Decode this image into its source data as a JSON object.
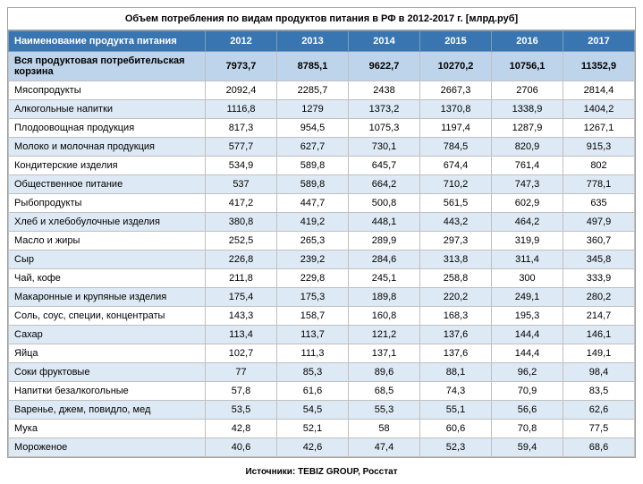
{
  "title": "Объем потребления по видам продуктов питания в РФ в 2012-2017 г. [млрд.руб]",
  "header": {
    "name": "Наименование продукта питания",
    "years": [
      "2012",
      "2013",
      "2014",
      "2015",
      "2016",
      "2017"
    ]
  },
  "totalRow": {
    "name": "Вся продуктовая потребительская корзина",
    "values": [
      "7973,7",
      "8785,1",
      "9622,7",
      "10270,2",
      "10756,1",
      "11352,9"
    ]
  },
  "rows": [
    {
      "name": "Мясопродукты",
      "values": [
        "2092,4",
        "2285,7",
        "2438",
        "2667,3",
        "2706",
        "2814,4"
      ]
    },
    {
      "name": "Алкогольные напитки",
      "values": [
        "1116,8",
        "1279",
        "1373,2",
        "1370,8",
        "1338,9",
        "1404,2"
      ]
    },
    {
      "name": "Плодоовощная продукция",
      "values": [
        "817,3",
        "954,5",
        "1075,3",
        "1197,4",
        "1287,9",
        "1267,1"
      ]
    },
    {
      "name": "Молоко и молочная продукция",
      "values": [
        "577,7",
        "627,7",
        "730,1",
        "784,5",
        "820,9",
        "915,3"
      ]
    },
    {
      "name": "Кондитерские изделия",
      "values": [
        "534,9",
        "589,8",
        "645,7",
        "674,4",
        "761,4",
        "802"
      ]
    },
    {
      "name": "Общественное питание",
      "values": [
        "537",
        "589,8",
        "664,2",
        "710,2",
        "747,3",
        "778,1"
      ]
    },
    {
      "name": "Рыбопродукты",
      "values": [
        "417,2",
        "447,7",
        "500,8",
        "561,5",
        "602,9",
        "635"
      ]
    },
    {
      "name": "Хлеб и хлебобулочные изделия",
      "values": [
        "380,8",
        "419,2",
        "448,1",
        "443,2",
        "464,2",
        "497,9"
      ]
    },
    {
      "name": "Масло и жиры",
      "values": [
        "252,5",
        "265,3",
        "289,9",
        "297,3",
        "319,9",
        "360,7"
      ]
    },
    {
      "name": "Сыр",
      "values": [
        "226,8",
        "239,2",
        "284,6",
        "313,8",
        "311,4",
        "345,8"
      ]
    },
    {
      "name": "Чай, кофе",
      "values": [
        "211,8",
        "229,8",
        "245,1",
        "258,8",
        "300",
        "333,9"
      ]
    },
    {
      "name": "Макаронные и крупяные изделия",
      "values": [
        "175,4",
        "175,3",
        "189,8",
        "220,2",
        "249,1",
        "280,2"
      ]
    },
    {
      "name": "Соль, соус, специи, концентраты",
      "values": [
        "143,3",
        "158,7",
        "160,8",
        "168,3",
        "195,3",
        "214,7"
      ]
    },
    {
      "name": "Сахар",
      "values": [
        "113,4",
        "113,7",
        "121,2",
        "137,6",
        "144,4",
        "146,1"
      ]
    },
    {
      "name": "Яйца",
      "values": [
        "102,7",
        "111,3",
        "137,1",
        "137,6",
        "144,4",
        "149,1"
      ]
    },
    {
      "name": "Соки фруктовые",
      "values": [
        "77",
        "85,3",
        "89,6",
        "88,1",
        "96,2",
        "98,4"
      ]
    },
    {
      "name": "Напитки безалкогольные",
      "values": [
        "57,8",
        "61,6",
        "68,5",
        "74,3",
        "70,9",
        "83,5"
      ]
    },
    {
      "name": "Варенье, джем, повидло, мед",
      "values": [
        "53,5",
        "54,5",
        "55,3",
        "55,1",
        "56,6",
        "62,6"
      ]
    },
    {
      "name": "Мука",
      "values": [
        "42,8",
        "52,1",
        "58",
        "60,6",
        "70,8",
        "77,5"
      ]
    },
    {
      "name": "Мороженое",
      "values": [
        "40,6",
        "42,6",
        "47,4",
        "52,3",
        "59,4",
        "68,6"
      ]
    }
  ],
  "source": "Источники: TEBIZ GROUP, Росстат"
}
